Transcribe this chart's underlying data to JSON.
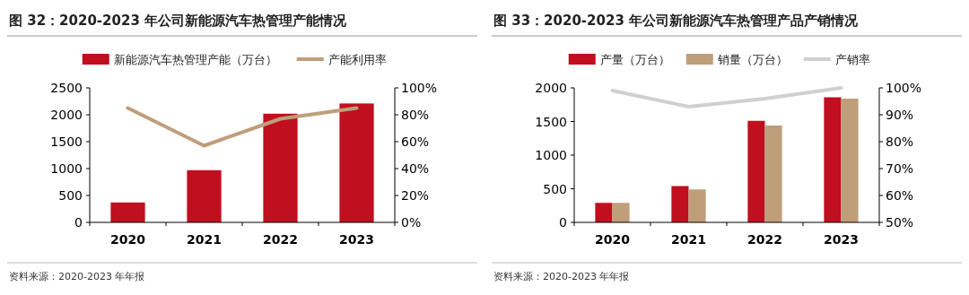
{
  "chart_data": [
    {
      "type": "bar",
      "title": "图 32：2020-2023 年公司新能源汽车热管理产能情况",
      "categories": [
        "2020",
        "2021",
        "2022",
        "2023"
      ],
      "series": [
        {
          "name": "新能源汽车热管理产能（万台）",
          "color": "#c00f1f",
          "values": [
            370,
            970,
            2020,
            2210
          ]
        },
        {
          "name": "产能利用率",
          "type": "line",
          "axis": "y2",
          "color": "#bf9e7a",
          "values": [
            85,
            57,
            77,
            85
          ]
        }
      ],
      "ylim": [
        0,
        2500
      ],
      "yticks": [
        0,
        500,
        1000,
        1500,
        2000,
        2500
      ],
      "y2lim": [
        0,
        100
      ],
      "y2ticks": [
        {
          "value": 0,
          "label": "0%"
        },
        {
          "value": 20,
          "label": "20%"
        },
        {
          "value": 40,
          "label": "40%"
        },
        {
          "value": 60,
          "label": "60%"
        },
        {
          "value": 80,
          "label": "80%"
        },
        {
          "value": 100,
          "label": "100%"
        }
      ],
      "legend": "top",
      "grid": false,
      "annotations": [
        "资料来源：2020-2023 年年报"
      ]
    },
    {
      "type": "bar",
      "title": "图 33：2020-2023 年公司新能源汽车热管理产品产销情况",
      "categories": [
        "2020",
        "2021",
        "2022",
        "2023"
      ],
      "series": [
        {
          "name": "产量（万台）",
          "color": "#c00f1f",
          "values": [
            290,
            540,
            1510,
            1860
          ]
        },
        {
          "name": "销量（万台）",
          "color": "#bf9e7a",
          "values": [
            290,
            490,
            1440,
            1840
          ]
        },
        {
          "name": "产销率",
          "type": "line",
          "axis": "y2",
          "color": "#d0d0d0",
          "values": [
            99,
            93,
            96,
            100
          ]
        }
      ],
      "ylim": [
        0,
        2000
      ],
      "yticks": [
        0,
        500,
        1000,
        1500,
        2000
      ],
      "y2lim": [
        50,
        100
      ],
      "y2ticks": [
        {
          "value": 50,
          "label": "50%"
        },
        {
          "value": 60,
          "label": "60%"
        },
        {
          "value": 70,
          "label": "70%"
        },
        {
          "value": 80,
          "label": "80%"
        },
        {
          "value": 90,
          "label": "90%"
        },
        {
          "value": 100,
          "label": "100%"
        }
      ],
      "legend": "top",
      "grid": false,
      "annotations": [
        "资料来源：2020-2023 年年报"
      ]
    }
  ]
}
